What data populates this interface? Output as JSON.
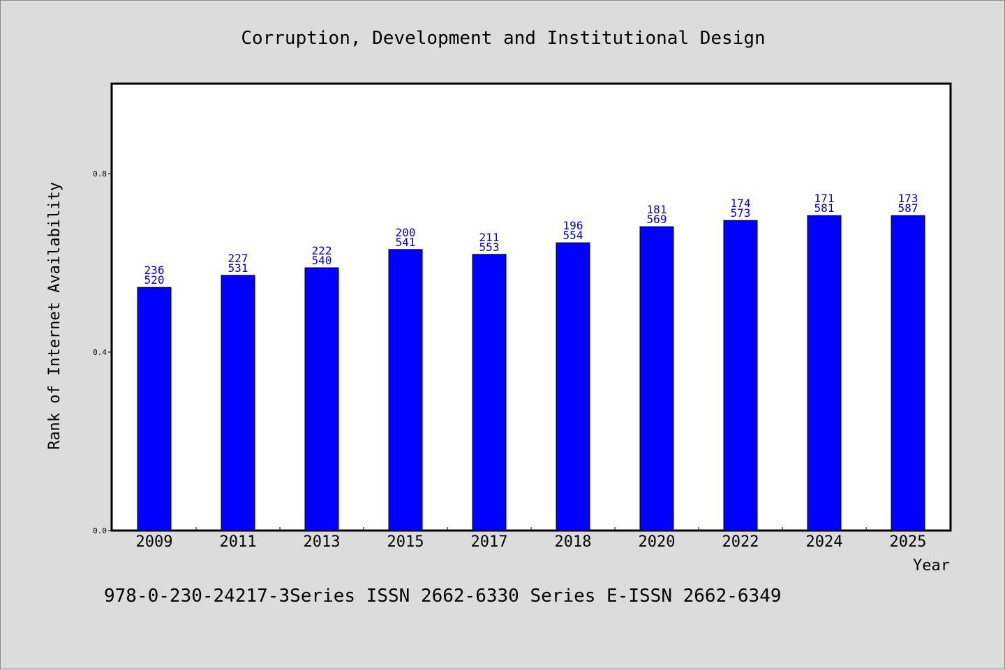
{
  "chart_data": {
    "type": "bar",
    "title": "Corruption, Development and Institutional Design",
    "xlabel": "Year",
    "ylabel": "Rank of Internet Availability",
    "categories": [
      "2009",
      "2011",
      "2013",
      "2015",
      "2017",
      "2018",
      "2020",
      "2022",
      "2024",
      "2025"
    ],
    "values": [
      0.545,
      0.572,
      0.589,
      0.63,
      0.619,
      0.645,
      0.681,
      0.695,
      0.706,
      0.706
    ],
    "label_top": [
      "236",
      "227",
      "222",
      "200",
      "211",
      "196",
      "181",
      "174",
      "171",
      "173"
    ],
    "label_bottom": [
      "520",
      "531",
      "540",
      "541",
      "553",
      "554",
      "569",
      "573",
      "581",
      "587"
    ],
    "ylim": [
      0,
      1.0
    ],
    "yticks": [
      0.0,
      0.4,
      0.8
    ],
    "ytick_labels": [
      "0.0",
      "0.4",
      "0.8"
    ],
    "grid": false,
    "bar_color": "#0000ff",
    "label_color": "#0000cc"
  },
  "footer": {
    "text": "978-0-230-24217-3Series ISSN 2662-6330 Series E-ISSN 2662-6349"
  }
}
